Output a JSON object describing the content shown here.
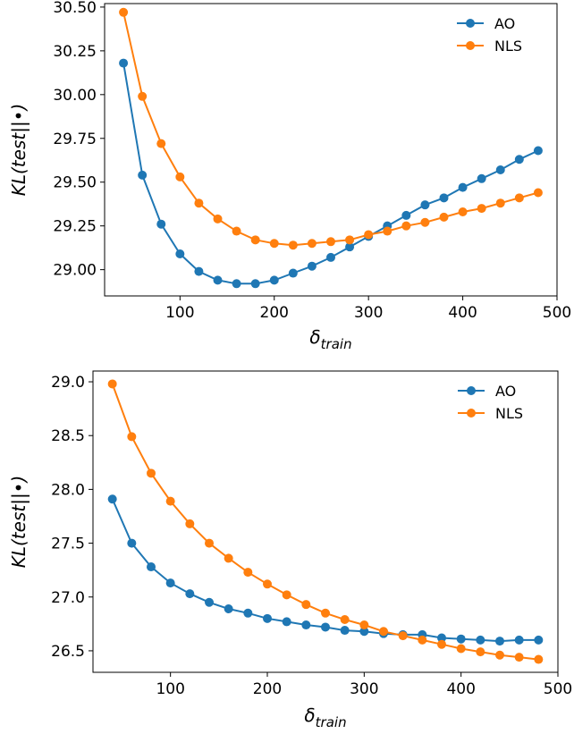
{
  "colors": {
    "AO": "#1f77b4",
    "NLS": "#ff7f0e"
  },
  "chart_data": [
    {
      "type": "line",
      "xlabel": "δ_train",
      "ylabel": "KL(test||•)",
      "xlim": [
        20,
        500
      ],
      "ylim": [
        28.85,
        30.52
      ],
      "x_ticks": [
        100,
        200,
        300,
        400,
        500
      ],
      "y_ticks": [
        29.0,
        29.25,
        29.5,
        29.75,
        30.0,
        30.25,
        30.5
      ],
      "y_tick_labels": [
        "29.00",
        "29.25",
        "29.50",
        "29.75",
        "30.00",
        "30.25",
        "30.50"
      ],
      "x_tick_labels": [
        "100",
        "200",
        "300",
        "400",
        "500"
      ],
      "legend_position": "top-right",
      "grid": false,
      "x": [
        40,
        60,
        80,
        100,
        120,
        140,
        160,
        180,
        200,
        220,
        240,
        260,
        280,
        300,
        320,
        340,
        360,
        380,
        400,
        420,
        440,
        460,
        480
      ],
      "series": [
        {
          "name": "AO",
          "values": [
            30.18,
            29.54,
            29.26,
            29.09,
            28.99,
            28.94,
            28.92,
            28.92,
            28.94,
            28.98,
            29.02,
            29.07,
            29.13,
            29.19,
            29.25,
            29.31,
            29.37,
            29.41,
            29.47,
            29.52,
            29.57,
            29.63,
            29.68
          ]
        },
        {
          "name": "NLS",
          "values": [
            30.47,
            29.99,
            29.72,
            29.53,
            29.38,
            29.29,
            29.22,
            29.17,
            29.15,
            29.14,
            29.15,
            29.16,
            29.17,
            29.2,
            29.22,
            29.25,
            29.27,
            29.3,
            29.33,
            29.35,
            29.38,
            29.41,
            29.44
          ]
        }
      ]
    },
    {
      "type": "line",
      "xlabel": "δ_train",
      "ylabel": "KL(test||•)",
      "xlim": [
        20,
        500
      ],
      "ylim": [
        26.3,
        29.1
      ],
      "x_ticks": [
        100,
        200,
        300,
        400,
        500
      ],
      "y_ticks": [
        26.5,
        27.0,
        27.5,
        28.0,
        28.5,
        29.0
      ],
      "y_tick_labels": [
        "26.5",
        "27.0",
        "27.5",
        "28.0",
        "28.5",
        "29.0"
      ],
      "x_tick_labels": [
        "100",
        "200",
        "300",
        "400",
        "500"
      ],
      "legend_position": "top-right",
      "grid": false,
      "x": [
        40,
        60,
        80,
        100,
        120,
        140,
        160,
        180,
        200,
        220,
        240,
        260,
        280,
        300,
        320,
        340,
        360,
        380,
        400,
        420,
        440,
        460,
        480
      ],
      "series": [
        {
          "name": "AO",
          "values": [
            27.91,
            27.5,
            27.28,
            27.13,
            27.03,
            26.95,
            26.89,
            26.85,
            26.8,
            26.77,
            26.74,
            26.72,
            26.69,
            26.68,
            26.66,
            26.65,
            26.65,
            26.62,
            26.61,
            26.6,
            26.59,
            26.6,
            26.6
          ]
        },
        {
          "name": "NLS",
          "values": [
            28.98,
            28.49,
            28.15,
            27.89,
            27.68,
            27.5,
            27.36,
            27.23,
            27.12,
            27.02,
            26.93,
            26.85,
            26.79,
            26.74,
            26.68,
            26.64,
            26.6,
            26.56,
            26.52,
            26.49,
            26.46,
            26.44,
            26.42
          ]
        }
      ]
    }
  ]
}
